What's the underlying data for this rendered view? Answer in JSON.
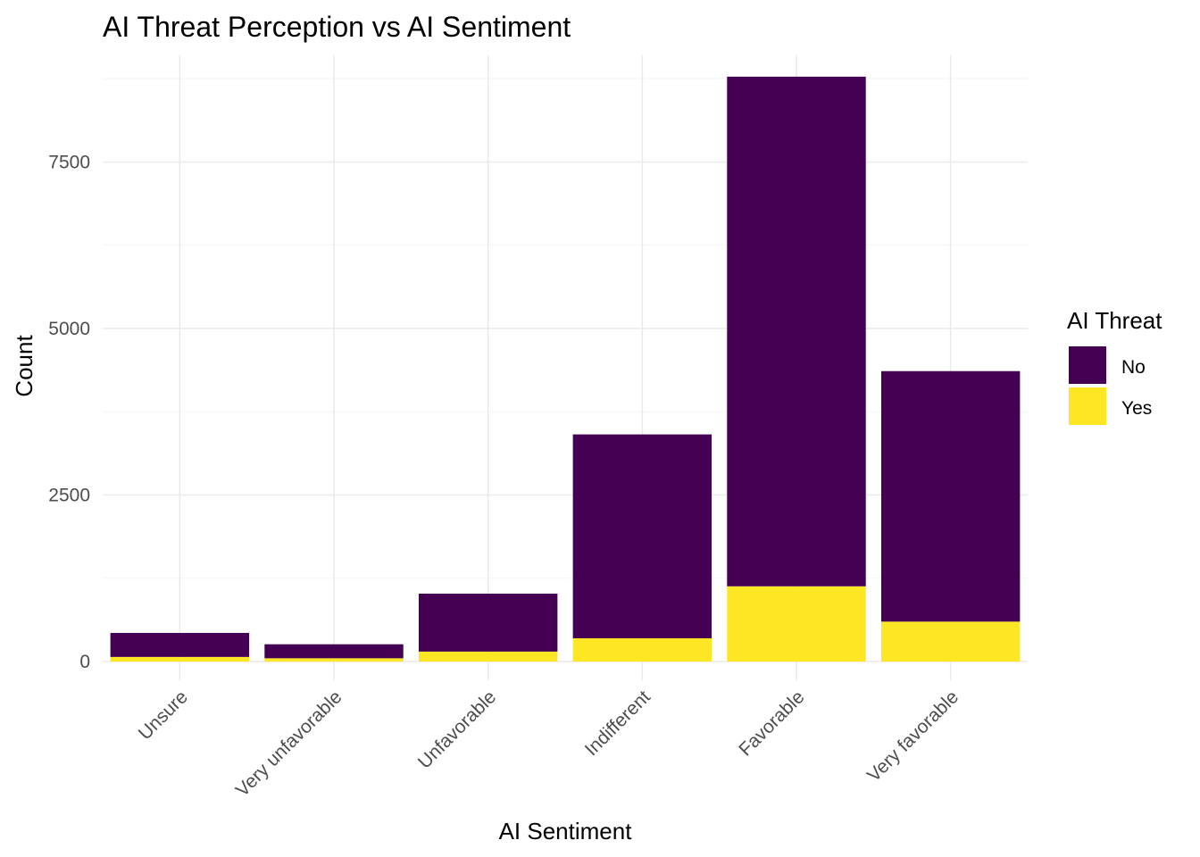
{
  "chart_data": {
    "type": "bar",
    "stacked": true,
    "title": "AI Threat Perception vs AI Sentiment",
    "xlabel": "AI Sentiment",
    "ylabel": "Count",
    "categories": [
      "Unsure",
      "Very unfavorable",
      "Unfavorable",
      "Indifferent",
      "Favorable",
      "Very favorable"
    ],
    "series": [
      {
        "name": "No",
        "color": "#440154",
        "values": [
          360,
          210,
          870,
          3060,
          7650,
          3760
        ]
      },
      {
        "name": "Yes",
        "color": "#fde725",
        "values": [
          70,
          50,
          150,
          350,
          1130,
          600
        ]
      }
    ],
    "ylim": [
      -280,
      9100
    ],
    "yticks": [
      0,
      2500,
      5000,
      7500
    ],
    "ytick_labels": [
      "0",
      "2500",
      "5000",
      "7500"
    ],
    "grid": true,
    "legend": {
      "title": "AI Threat",
      "position": "right"
    }
  }
}
